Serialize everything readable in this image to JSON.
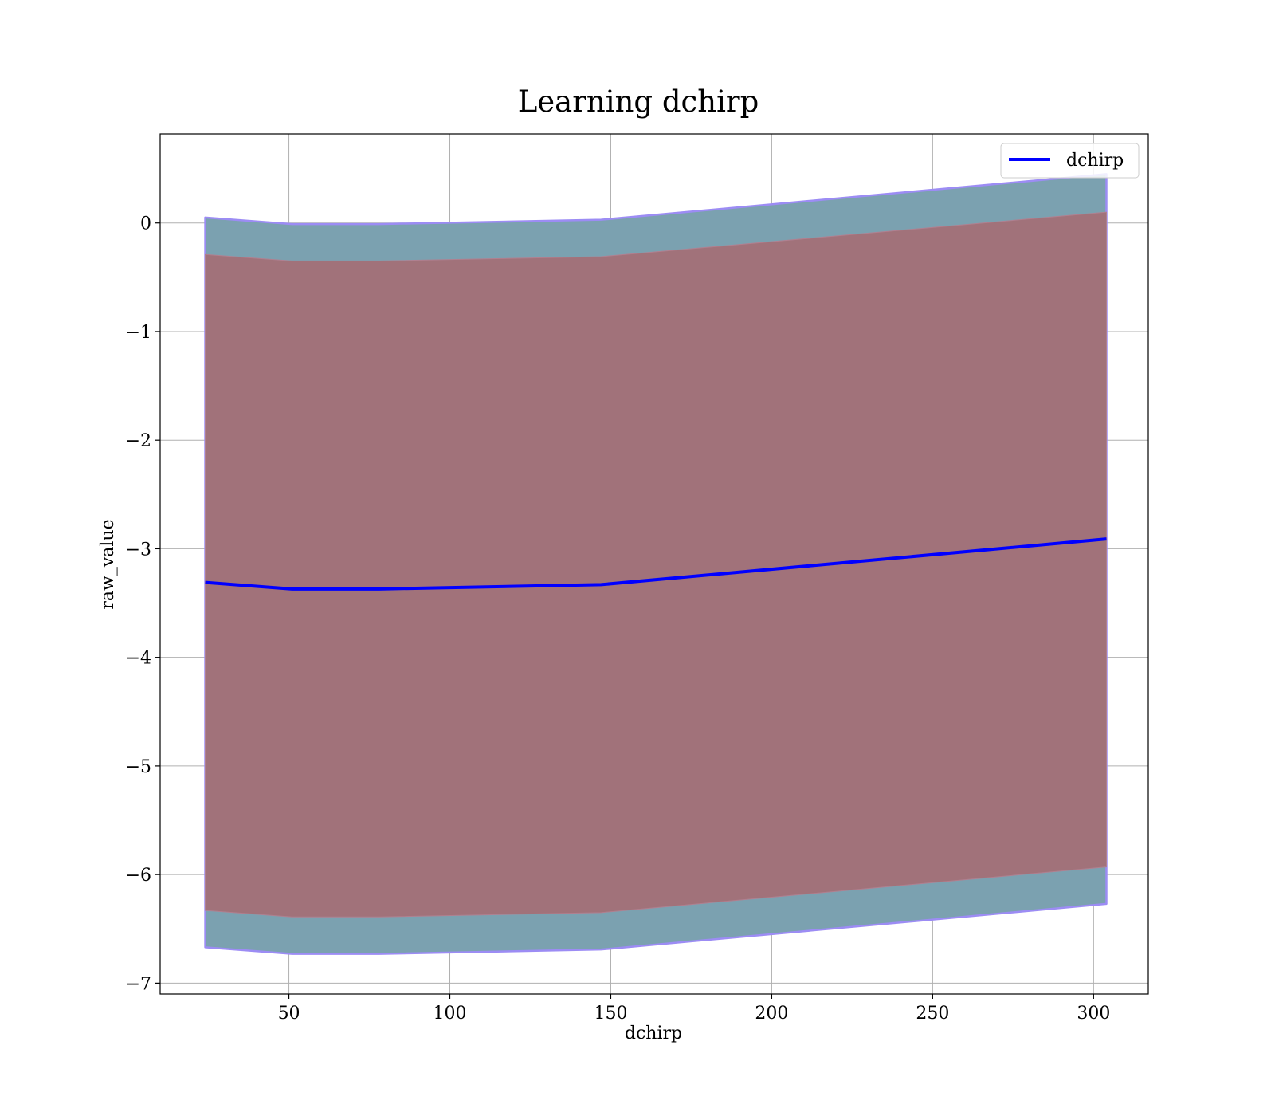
{
  "chart_data": {
    "type": "line",
    "title": "Learning dchirp",
    "xlabel": "dchirp",
    "ylabel": "raw_value",
    "xlim": [
      10,
      317
    ],
    "ylim": [
      -7.1,
      0.82
    ],
    "xticks": [
      50,
      100,
      150,
      200,
      250,
      300
    ],
    "xtick_labels": [
      "50",
      "100",
      "150",
      "200",
      "250",
      "300"
    ],
    "yticks": [
      0,
      -1,
      -2,
      -3,
      -4,
      -5,
      -6,
      -7
    ],
    "ytick_labels": [
      "0",
      "−1",
      "−2",
      "−3",
      "−4",
      "−5",
      "−6",
      "−7"
    ],
    "grid": true,
    "legend": {
      "placement": "upper right",
      "entries": [
        {
          "label": "dchirp",
          "color": "#0000ff"
        }
      ]
    },
    "x": [
      24,
      51,
      78,
      147,
      304
    ],
    "series": [
      {
        "name": "dchirp",
        "kind": "line",
        "color": "#0000ff",
        "values": [
          -3.31,
          -3.37,
          -3.37,
          -3.33,
          -2.91
        ]
      }
    ],
    "bands": [
      {
        "kind": "outer",
        "fill": "#7ba1b0",
        "edge": "#9c8cf4",
        "upper": [
          0.05,
          -0.01,
          -0.01,
          0.03,
          0.45
        ],
        "lower": [
          -6.67,
          -6.73,
          -6.73,
          -6.69,
          -6.27
        ]
      },
      {
        "kind": "inner",
        "fill": "#a1727a",
        "edge": "#b08090",
        "upper": [
          -0.29,
          -0.35,
          -0.35,
          -0.31,
          0.1
        ],
        "lower": [
          -6.33,
          -6.39,
          -6.39,
          -6.35,
          -5.93
        ]
      }
    ]
  }
}
